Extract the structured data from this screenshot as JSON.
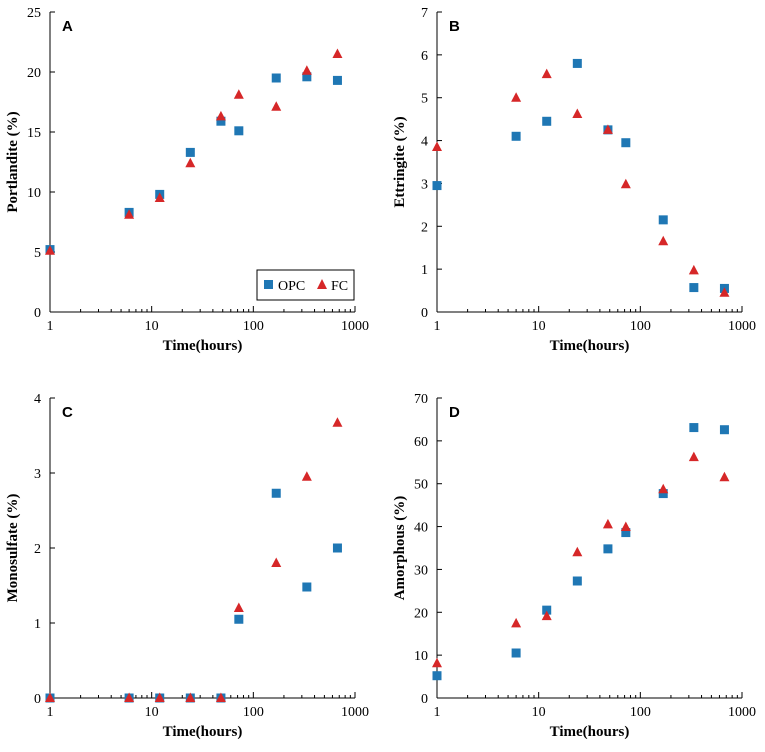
{
  "colors": {
    "opc": "#1f77b4",
    "fc": "#d62728",
    "axis": "#000000"
  },
  "legend": {
    "opc_label": "OPC",
    "fc_label": "FC"
  },
  "chart_data": [
    {
      "panel": "A",
      "type": "scatter",
      "xscale": "log",
      "xlabel": "Time(hours)",
      "ylabel": "Portlandite (%)",
      "xlim": [
        1,
        1000
      ],
      "ylim": [
        0,
        25
      ],
      "xticks": [
        1,
        10,
        100,
        1000
      ],
      "xtick_labels": [
        "1",
        "10",
        "100",
        "1000"
      ],
      "yticks": [
        0,
        5,
        10,
        15,
        20,
        25
      ],
      "ytick_labels": [
        "0",
        "5",
        "10",
        "15",
        "20",
        "25"
      ],
      "legend": true,
      "series": [
        {
          "name": "OPC",
          "marker": "square",
          "x": [
            1,
            6,
            12,
            24,
            48,
            72,
            168,
            336,
            672
          ],
          "y": [
            5.2,
            8.3,
            9.8,
            13.3,
            15.9,
            15.1,
            19.5,
            19.6,
            19.3
          ]
        },
        {
          "name": "FC",
          "marker": "triangle",
          "x": [
            1,
            6,
            12,
            24,
            48,
            72,
            168,
            336,
            672
          ],
          "y": [
            5.1,
            8.1,
            9.5,
            12.4,
            16.3,
            18.1,
            17.1,
            20.1,
            21.5
          ]
        }
      ]
    },
    {
      "panel": "B",
      "type": "scatter",
      "xscale": "log",
      "xlabel": "Time(hours)",
      "ylabel": "Ettringite (%)",
      "xlim": [
        1,
        1000
      ],
      "ylim": [
        0,
        7
      ],
      "xticks": [
        1,
        10,
        100,
        1000
      ],
      "xtick_labels": [
        "1",
        "10",
        "100",
        "1000"
      ],
      "yticks": [
        0,
        1,
        2,
        3,
        4,
        5,
        6,
        7
      ],
      "ytick_labels": [
        "0",
        "1",
        "2",
        "3",
        "4",
        "5",
        "6",
        "7"
      ],
      "legend": false,
      "series": [
        {
          "name": "OPC",
          "marker": "square",
          "x": [
            1,
            6,
            12,
            24,
            48,
            72,
            168,
            336,
            672
          ],
          "y": [
            2.95,
            4.1,
            4.45,
            5.8,
            4.25,
            3.95,
            2.15,
            0.57,
            0.55
          ]
        },
        {
          "name": "FC",
          "marker": "triangle",
          "x": [
            1,
            6,
            12,
            24,
            48,
            72,
            168,
            336,
            672
          ],
          "y": [
            3.85,
            5.0,
            5.55,
            4.62,
            4.25,
            2.98,
            1.65,
            0.97,
            0.45
          ]
        }
      ]
    },
    {
      "panel": "C",
      "type": "scatter",
      "xscale": "log",
      "xlabel": "Time(hours)",
      "ylabel": "Monosulfate (%)",
      "xlim": [
        1,
        1000
      ],
      "ylim": [
        0,
        4
      ],
      "xticks": [
        1,
        10,
        100,
        1000
      ],
      "xtick_labels": [
        "1",
        "10",
        "100",
        "1000"
      ],
      "yticks": [
        0,
        1,
        2,
        3,
        4
      ],
      "ytick_labels": [
        "0",
        "1",
        "2",
        "3",
        "4"
      ],
      "legend": false,
      "series": [
        {
          "name": "OPC",
          "marker": "square",
          "x": [
            1,
            6,
            12,
            24,
            48,
            72,
            168,
            336,
            672
          ],
          "y": [
            0,
            0,
            0,
            0,
            0,
            1.05,
            2.73,
            1.48,
            2.0
          ]
        },
        {
          "name": "FC",
          "marker": "triangle",
          "x": [
            1,
            6,
            12,
            24,
            48,
            72,
            168,
            336,
            672
          ],
          "y": [
            0,
            0,
            0,
            0,
            0,
            1.2,
            1.8,
            2.95,
            3.67
          ]
        }
      ]
    },
    {
      "panel": "D",
      "type": "scatter",
      "xscale": "log",
      "xlabel": "Time(hours)",
      "ylabel": "Amorphous (%)",
      "xlim": [
        1,
        1000
      ],
      "ylim": [
        0,
        70
      ],
      "xticks": [
        1,
        10,
        100,
        1000
      ],
      "xtick_labels": [
        "1",
        "10",
        "100",
        "1000"
      ],
      "yticks": [
        0,
        10,
        20,
        30,
        40,
        50,
        60,
        70
      ],
      "ytick_labels": [
        "0",
        "10",
        "20",
        "30",
        "40",
        "50",
        "60",
        "70"
      ],
      "legend": false,
      "series": [
        {
          "name": "OPC",
          "marker": "square",
          "x": [
            1,
            6,
            12,
            24,
            48,
            72,
            168,
            336,
            672
          ],
          "y": [
            5.2,
            10.5,
            20.5,
            27.3,
            34.8,
            38.6,
            47.7,
            63.1,
            62.6
          ]
        },
        {
          "name": "FC",
          "marker": "triangle",
          "x": [
            1,
            6,
            12,
            24,
            48,
            72,
            168,
            336,
            672
          ],
          "y": [
            8.1,
            17.4,
            19.1,
            34.0,
            40.5,
            39.9,
            48.7,
            56.2,
            51.5
          ]
        }
      ]
    }
  ]
}
